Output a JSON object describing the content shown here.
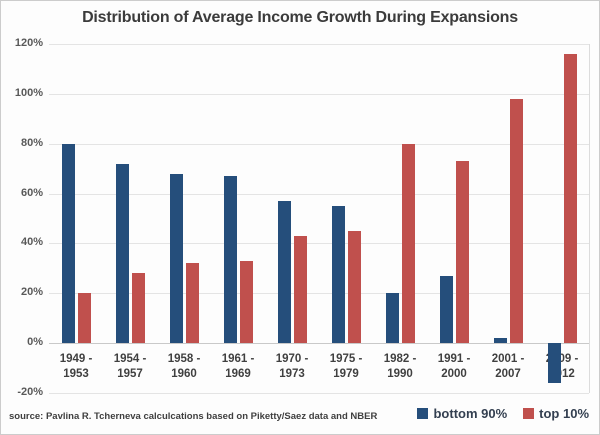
{
  "title": "Distribution of Average Income Growth During Expansions",
  "source_note": "source: Pavlina R. Tcherneva calculcations based on Piketty/Saez data and NBER",
  "colors": {
    "bottom90_bar": "#254e7b",
    "top10_bar": "#c0504d",
    "gridline": "#e4e4e4",
    "zero_axis": "#c9c9c9",
    "title_text": "#3b3b3b",
    "axis_text": "#595959"
  },
  "legend": [
    {
      "label": "bottom 90%",
      "color": "#254e7b"
    },
    {
      "label": "top 10%",
      "color": "#c0504d"
    }
  ],
  "chart_data": {
    "type": "bar",
    "title": "Distribution of Average Income Growth During Expansions",
    "categories": [
      "1949 - 1953",
      "1954 - 1957",
      "1958 - 1960",
      "1961 - 1969",
      "1970 - 1973",
      "1975 - 1979",
      "1982 - 1990",
      "1991 - 2000",
      "2001 - 2007",
      "2009 - 2012"
    ],
    "series": [
      {
        "name": "bottom 90%",
        "color": "#254e7b",
        "values": [
          80,
          72,
          68,
          67,
          57,
          55,
          20,
          27,
          2,
          -16
        ]
      },
      {
        "name": "top 10%",
        "color": "#c0504d",
        "values": [
          20,
          28,
          32,
          33,
          43,
          45,
          80,
          73,
          98,
          116
        ]
      }
    ],
    "xlabel": "",
    "ylabel": "",
    "ylim": [
      -20,
      120
    ],
    "ytick_step": 20,
    "yticks": [
      "120%",
      "100%",
      "80%",
      "60%",
      "40%",
      "20%",
      "0%",
      "-20%"
    ],
    "grid": "horizontal",
    "legend_position": "bottom-right"
  }
}
